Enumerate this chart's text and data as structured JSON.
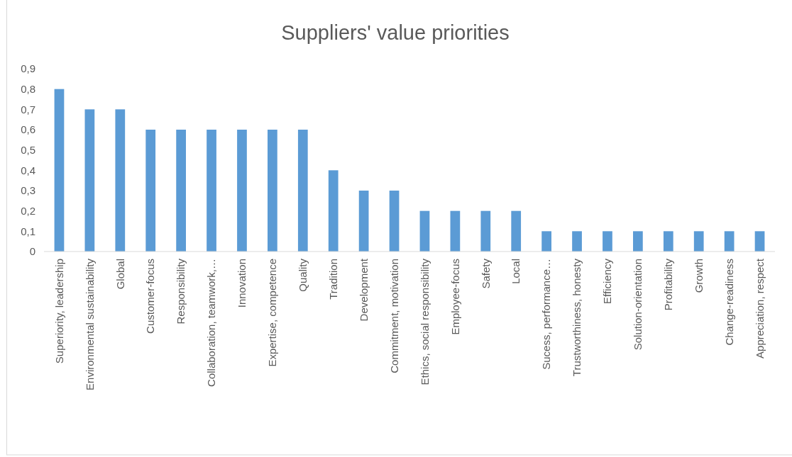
{
  "chart_data": {
    "type": "bar",
    "title": "Suppliers' value priorities",
    "categories": [
      "Superiority, leadership",
      "Environmental sustainability",
      "Global",
      "Customer-focus",
      "Responsibility",
      "Collaboration, teamwork,…",
      "Innovation",
      "Expertise, competence",
      "Quality",
      "Tradition",
      "Development",
      "Commitment, motivation",
      "Ethics, social responsibility",
      "Employee-focus",
      "Safety",
      "Local",
      "Sucess, performance…",
      "Trustworthiness, honesty",
      "Efficiency",
      "Solution-orientation",
      "Profitability",
      "Growth",
      "Change-readiness",
      "Appreciation, respect"
    ],
    "values": [
      0.8,
      0.7,
      0.7,
      0.6,
      0.6,
      0.6,
      0.6,
      0.6,
      0.6,
      0.4,
      0.3,
      0.3,
      0.2,
      0.2,
      0.2,
      0.2,
      0.1,
      0.1,
      0.1,
      0.1,
      0.1,
      0.1,
      0.1,
      0.1
    ],
    "color": "#5b9bd5",
    "ylim": [
      0,
      0.9
    ],
    "yticks": [
      {
        "value": 0,
        "label": "0"
      },
      {
        "value": 0.1,
        "label": "0,1"
      },
      {
        "value": 0.2,
        "label": "0,2"
      },
      {
        "value": 0.3,
        "label": "0,3"
      },
      {
        "value": 0.4,
        "label": "0,4"
      },
      {
        "value": 0.5,
        "label": "0,5"
      },
      {
        "value": 0.6,
        "label": "0,6"
      },
      {
        "value": 0.7,
        "label": "0,7"
      },
      {
        "value": 0.8,
        "label": "0,8"
      },
      {
        "value": 0.9,
        "label": "0,9"
      }
    ],
    "grid": false
  }
}
